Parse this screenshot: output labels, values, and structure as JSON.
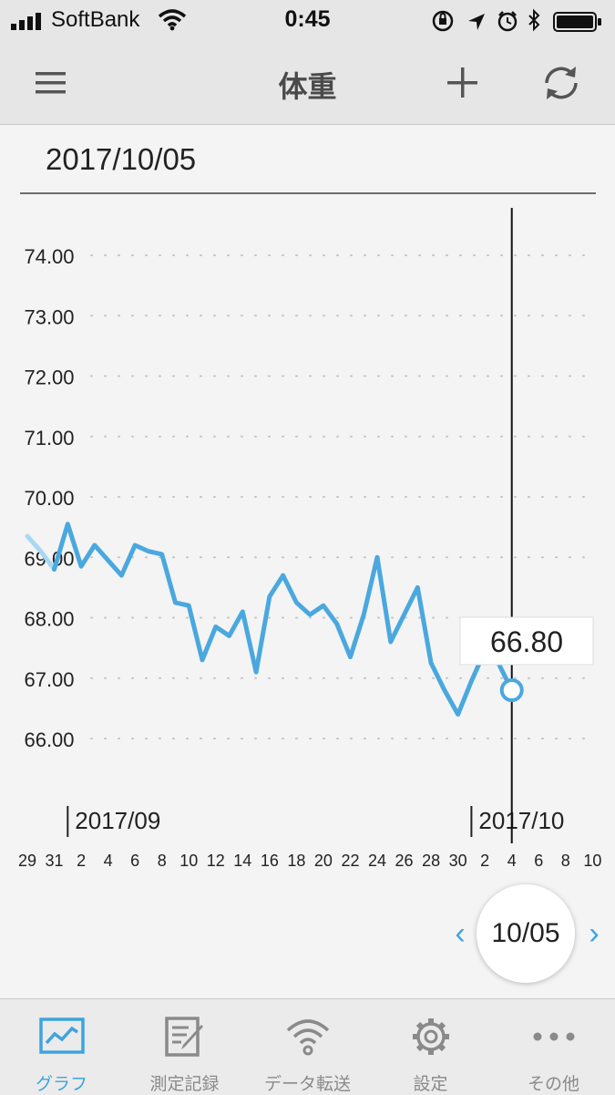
{
  "status": {
    "carrier": "SoftBank",
    "time": "0:45"
  },
  "nav": {
    "title": "体重",
    "menu_icon": "hamburger-menu-icon",
    "add_icon": "plus-icon",
    "sync_icon": "sync-icon"
  },
  "date_header": "2017/10/05",
  "colors": {
    "accent": "#3ea4dc",
    "line": "#4aa8de",
    "line_light": "#a9d8f3",
    "background": "#f4f4f4"
  },
  "chart_data": {
    "type": "line",
    "title": "",
    "xlabel": "",
    "ylabel": "",
    "ylim": [
      65.0,
      74.6
    ],
    "y_ticks": [
      "74.00",
      "73.00",
      "72.00",
      "71.00",
      "70.00",
      "69.00",
      "68.00",
      "67.00",
      "66.00"
    ],
    "grid": true,
    "x_tick_labels": [
      "29",
      "31",
      "2",
      "4",
      "6",
      "8",
      "10",
      "12",
      "14",
      "16",
      "18",
      "20",
      "22",
      "24",
      "26",
      "28",
      "30",
      "2",
      "4",
      "6",
      "8",
      "10"
    ],
    "month_labels": [
      {
        "label": "2017/09",
        "date": "2017-09-01"
      },
      {
        "label": "2017/10",
        "date": "2017-10-01"
      }
    ],
    "x_range": [
      "2017-08-29",
      "2017-10-10"
    ],
    "series": [
      {
        "values": [
          {
            "date": "2017-08-29",
            "y": 69.35
          },
          {
            "date": "2017-08-30",
            "y": 69.1
          },
          {
            "date": "2017-08-31",
            "y": 68.8
          },
          {
            "date": "2017-09-01",
            "y": 69.55
          },
          {
            "date": "2017-09-02",
            "y": 68.85
          },
          {
            "date": "2017-09-03",
            "y": 69.2
          },
          {
            "date": "2017-09-04",
            "y": 68.95
          },
          {
            "date": "2017-09-05",
            "y": 68.7
          },
          {
            "date": "2017-09-06",
            "y": 69.2
          },
          {
            "date": "2017-09-07",
            "y": 69.1
          },
          {
            "date": "2017-09-08",
            "y": 69.05
          },
          {
            "date": "2017-09-09",
            "y": 68.25
          },
          {
            "date": "2017-09-10",
            "y": 68.2
          },
          {
            "date": "2017-09-11",
            "y": 67.3
          },
          {
            "date": "2017-09-12",
            "y": 67.85
          },
          {
            "date": "2017-09-13",
            "y": 67.7
          },
          {
            "date": "2017-09-14",
            "y": 68.1
          },
          {
            "date": "2017-09-15",
            "y": 67.1
          },
          {
            "date": "2017-09-16",
            "y": 68.35
          },
          {
            "date": "2017-09-17",
            "y": 68.7
          },
          {
            "date": "2017-09-18",
            "y": 68.25
          },
          {
            "date": "2017-09-19",
            "y": 68.05
          },
          {
            "date": "2017-09-20",
            "y": 68.2
          },
          {
            "date": "2017-09-21",
            "y": 67.9
          },
          {
            "date": "2017-09-22",
            "y": 67.35
          },
          {
            "date": "2017-09-23",
            "y": 68.05
          },
          {
            "date": "2017-09-24",
            "y": 69.0
          },
          {
            "date": "2017-09-25",
            "y": 67.6
          },
          {
            "date": "2017-09-26",
            "y": 68.05
          },
          {
            "date": "2017-09-27",
            "y": 68.5
          },
          {
            "date": "2017-09-28",
            "y": 67.25
          },
          {
            "date": "2017-09-29",
            "y": 66.8
          },
          {
            "date": "2017-09-30",
            "y": 66.4
          },
          {
            "date": "2017-10-01",
            "y": 66.95
          },
          {
            "date": "2017-10-02",
            "y": 67.45
          },
          {
            "date": "2017-10-03",
            "y": 67.25
          },
          {
            "date": "2017-10-04",
            "y": 66.8
          }
        ]
      }
    ],
    "selected": {
      "date": "2017-10-04",
      "value_label": "66.80"
    }
  },
  "day_nav": {
    "prev": "‹",
    "next": "›",
    "date": "10/05"
  },
  "tabs": [
    {
      "label": "グラフ",
      "icon": "graph-icon",
      "active": true
    },
    {
      "label": "測定記録",
      "icon": "record-edit-icon",
      "active": false
    },
    {
      "label": "データ転送",
      "icon": "wifi-transfer-icon",
      "active": false
    },
    {
      "label": "設定",
      "icon": "gear-icon",
      "active": false
    },
    {
      "label": "その他",
      "icon": "more-icon",
      "active": false
    }
  ]
}
